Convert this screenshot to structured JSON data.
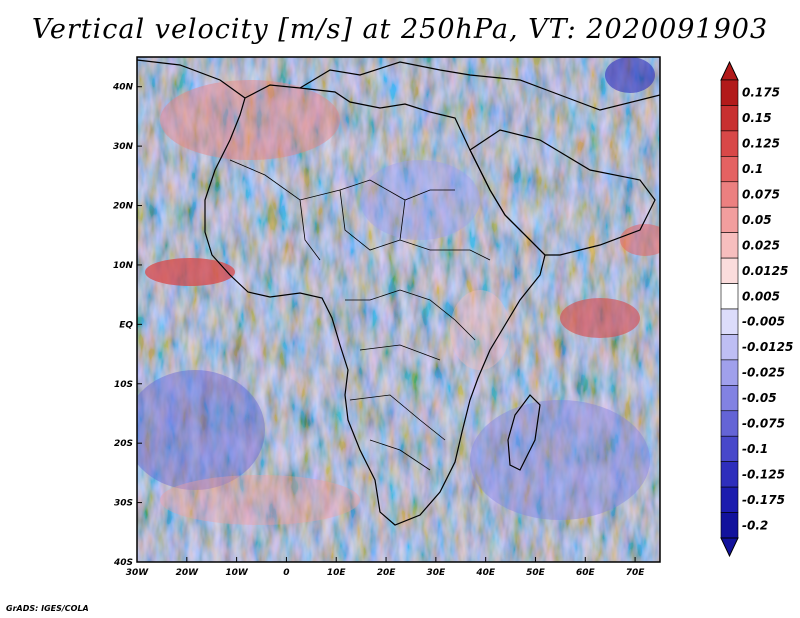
{
  "title": "Vertical velocity [m/s] at 250hPa, VT: 2020091903",
  "footer": "GrADS: IGES/COLA",
  "map": {
    "region": "Africa",
    "lon_range": [
      -30,
      75
    ],
    "lat_range": [
      -40,
      45
    ],
    "lon_labels": [
      "30W",
      "20W",
      "10W",
      "0",
      "10E",
      "20E",
      "30E",
      "40E",
      "50E",
      "60E",
      "70E"
    ],
    "lat_labels": [
      "40N",
      "30N",
      "20N",
      "10N",
      "EQ",
      "10S",
      "20S",
      "30S",
      "40S"
    ]
  },
  "colorbar": {
    "labels": [
      "0.175",
      "0.15",
      "0.125",
      "0.1",
      "0.075",
      "0.05",
      "0.025",
      "0.0125",
      "0.005",
      "-0.005",
      "-0.0125",
      "-0.025",
      "-0.05",
      "-0.075",
      "-0.1",
      "-0.125",
      "-0.175",
      "-0.2"
    ],
    "colors": [
      "#b21a1a",
      "#c83030",
      "#d84848",
      "#e46262",
      "#ec8080",
      "#f29e9e",
      "#f7bebe",
      "#fbdcdc",
      "#ffffff",
      "#dcdcfb",
      "#bebef4",
      "#a0a0ec",
      "#8282e2",
      "#6464d6",
      "#4848ca",
      "#2e2ebc",
      "#1c1cae",
      "#12129c"
    ]
  }
}
